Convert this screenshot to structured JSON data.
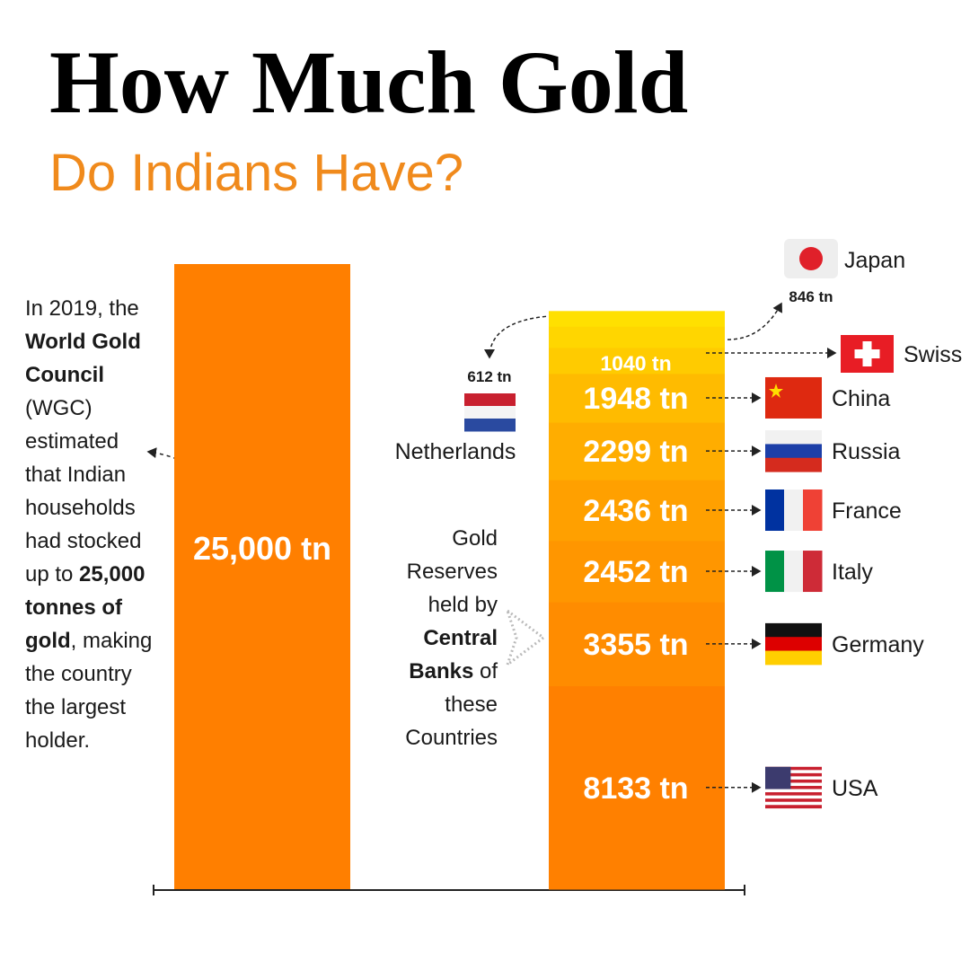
{
  "chart_data": {
    "type": "stacked_bar",
    "title": "How Much Gold",
    "subtitle": "Do Indians Have?",
    "ylim": [
      0,
      25000
    ],
    "note": [
      {
        "text": "In 2019, the ",
        "bold": false
      },
      {
        "text": "World Gold Council",
        "bold": true
      },
      {
        "text": " (WGC) estimated that Indian households had stocked up to ",
        "bold": false
      },
      {
        "text": "25,000 tonnes of gold",
        "bold": true
      },
      {
        "text": ", making the country the largest holder.",
        "bold": false
      }
    ],
    "middle_note": [
      {
        "text": "Gold Reserves held by ",
        "bold": false
      },
      {
        "text": "Central Banks",
        "bold": true
      },
      {
        "text": " of these Countries",
        "bold": false
      }
    ],
    "bar": {
      "value": 25000,
      "value_label": "25,000 tn",
      "color": "#ff7f00"
    },
    "stack": [
      {
        "name": "USA",
        "value": 8133,
        "value_label": "8133 tn",
        "color": "#ff8000"
      },
      {
        "name": "Germany",
        "value": 3355,
        "value_label": "3355 tn",
        "color": "#ff8c00"
      },
      {
        "name": "Italy",
        "value": 2452,
        "value_label": "2452 tn",
        "color": "#ff9600"
      },
      {
        "name": "France",
        "value": 2436,
        "value_label": "2436 tn",
        "color": "#ffa000"
      },
      {
        "name": "Russia",
        "value": 2299,
        "value_label": "2299 tn",
        "color": "#ffad00"
      },
      {
        "name": "China",
        "value": 1948,
        "value_label": "1948 tn",
        "color": "#ffbb00"
      },
      {
        "name": "Swiss",
        "value": 1040,
        "value_label": "1040 tn",
        "color": "#ffcb00"
      },
      {
        "name": "Japan",
        "value": 846,
        "value_label": "846 tn",
        "color": "#ffd600"
      },
      {
        "name": "Netherlands",
        "value": 612,
        "value_label": "612 tn",
        "color": "#ffe000"
      }
    ]
  }
}
